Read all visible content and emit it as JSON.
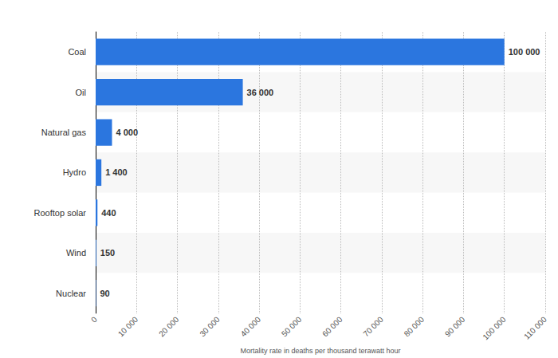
{
  "chart_data": {
    "type": "bar",
    "orientation": "horizontal",
    "categories": [
      "Coal",
      "Oil",
      "Natural gas",
      "Hydro",
      "Rooftop solar",
      "Wind",
      "Nuclear"
    ],
    "values": [
      100000,
      36000,
      4000,
      1400,
      440,
      150,
      90
    ],
    "value_labels": [
      "100 000",
      "36 000",
      "4 000",
      "1 400",
      "440",
      "150",
      "90"
    ],
    "color": "#2b76df",
    "xlabel": "Mortality rate in deaths per thousand terawatt hour",
    "xlim": [
      0,
      110000
    ],
    "xticks": [
      0,
      {
        "value": 10000,
        "label": "10 000"
      },
      {
        "value": 20000,
        "label": "20 000"
      },
      {
        "value": 30000,
        "label": "30 000"
      },
      {
        "value": 40000,
        "label": "40 000"
      },
      {
        "value": 50000,
        "label": "50 000"
      },
      {
        "value": 60000,
        "label": "60 000"
      },
      {
        "value": 70000,
        "label": "70 000"
      },
      {
        "value": 80000,
        "label": "80 000"
      },
      {
        "value": 90000,
        "label": "90 000"
      },
      {
        "value": 100000,
        "label": "100 000"
      },
      {
        "value": 110000,
        "label": "110 000"
      }
    ],
    "grid": true,
    "data_labels": true
  }
}
